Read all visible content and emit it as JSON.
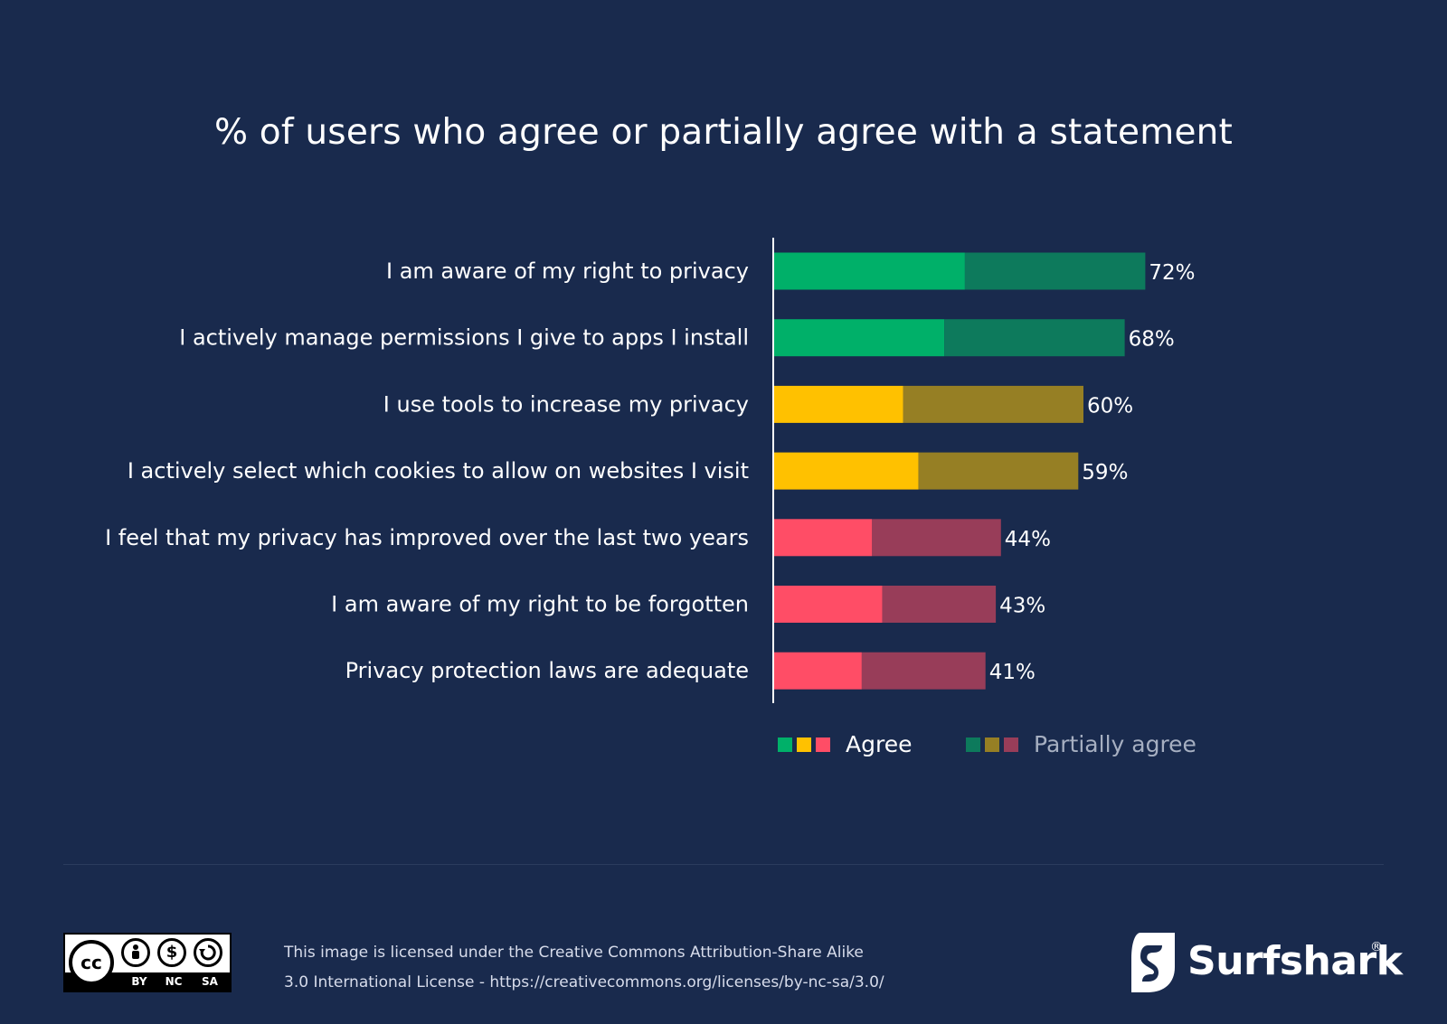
{
  "chart_data": {
    "type": "bar",
    "orientation": "horizontal",
    "stacked": true,
    "title": "% of users who agree or partially agree with a statement",
    "categories": [
      "I am aware of my right to privacy",
      "I actively manage permissions I give to  apps I install",
      "I use tools to increase my privacy",
      "I actively select which cookies to allow on websites I visit",
      "I feel that my privacy has improved over the last two years",
      "I am aware of my right to be forgotten",
      "Privacy protection laws are adequate"
    ],
    "series": [
      {
        "name": "Agree",
        "values": [
          37,
          33,
          25,
          28,
          19,
          21,
          17
        ]
      },
      {
        "name": "Partially agree",
        "values": [
          35,
          35,
          35,
          31,
          25,
          22,
          24
        ]
      }
    ],
    "totals": [
      72,
      68,
      60,
      59,
      44,
      43,
      41
    ],
    "total_labels": [
      "72%",
      "68%",
      "60%",
      "59%",
      "44%",
      "43%",
      "41%"
    ],
    "agree_colors": [
      "#00b069",
      "#00b069",
      "#ffc100",
      "#ffc100",
      "#ff4d66",
      "#ff4d66",
      "#ff4d66"
    ],
    "partial_colors": [
      "#0d7a5c",
      "#0d7a5c",
      "#967f24",
      "#967f24",
      "#983d59",
      "#983d59",
      "#983d59"
    ],
    "legend": [
      {
        "label": "Agree",
        "colors": [
          "#00b069",
          "#ffc100",
          "#ff4d66"
        ],
        "text_color": "#ffffff"
      },
      {
        "label": "Partially agree",
        "colors": [
          "#0d7a5c",
          "#967f24",
          "#983d59"
        ],
        "text_color": "#a6afc1"
      }
    ],
    "xlim": [
      0,
      100
    ],
    "grid": false,
    "legend_position": "bottom"
  },
  "footer": {
    "license_line1": "This image is licensed under the Creative Commons Attribution-Share Alike",
    "license_line2": "3.0 International License - https://creativecommons.org/licenses/by-nc-sa/3.0/",
    "cc_badge": {
      "cc": "cc",
      "by": "BY",
      "nc": "NC",
      "sa": "SA"
    },
    "brand_name": "Surfshark",
    "brand_reg": "®"
  }
}
